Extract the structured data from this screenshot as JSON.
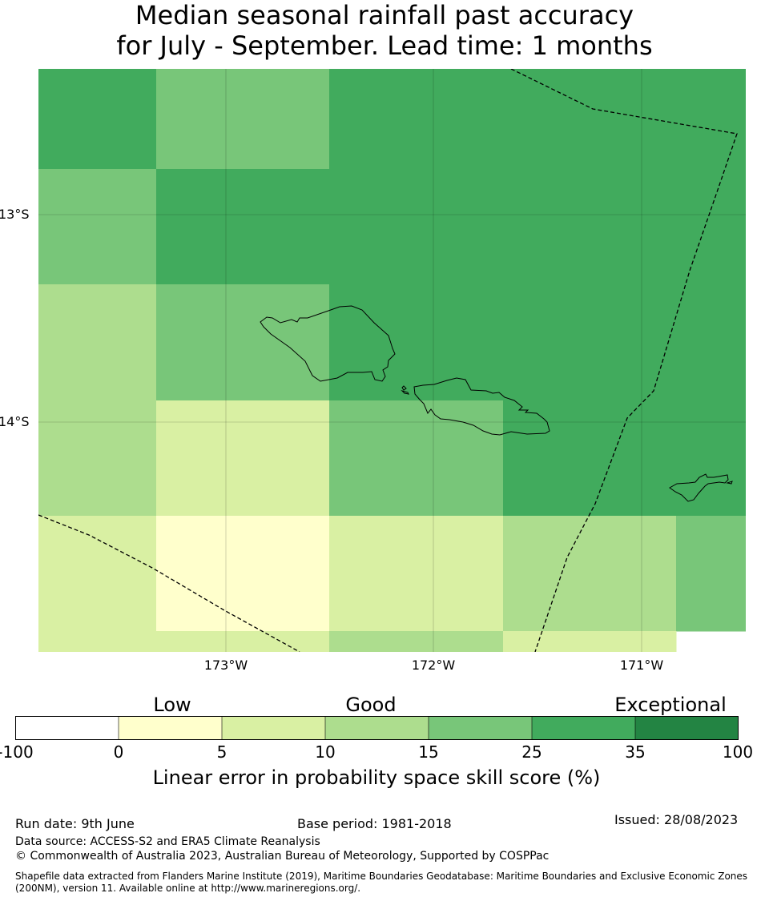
{
  "title": {
    "line1": "Median seasonal rainfall past accuracy",
    "line2": "for July - September. Lead time: 1 months"
  },
  "map": {
    "lat_labels": [
      "13°S",
      "14°S"
    ],
    "lon_labels": [
      "173°W",
      "172°W",
      "171°W"
    ],
    "grid_fill_scale": {
      "c1": "#ffffcc",
      "c2": "#d9f0a3",
      "c3": "#addd8e",
      "c4": "#78c679",
      "c5": "#41ab5d"
    },
    "grid_cells": [
      [
        "c5",
        "c4",
        "c4",
        "c5",
        "c5",
        "c5",
        "c5"
      ],
      [
        "c4",
        "c5",
        "c5",
        "c5",
        "c5",
        "c5",
        "c5"
      ],
      [
        "c3",
        "c4",
        "c4",
        "c5",
        "c5",
        "c5",
        "c5"
      ],
      [
        "c3",
        "c2",
        "c2",
        "c4",
        "c5",
        "c5",
        "c5"
      ],
      [
        "c2",
        "c1",
        "c1",
        "c2",
        "c3",
        "c3",
        "c4"
      ],
      [
        "c2",
        "c2",
        "c2",
        "c3",
        "c2",
        "c2",
        ""
      ]
    ]
  },
  "colorbar": {
    "categories": [
      "Low",
      "Good",
      "Exceptional"
    ],
    "ticks": [
      "-100",
      "0",
      "5",
      "10",
      "15",
      "25",
      "35",
      "100"
    ],
    "colors": [
      "#ffffff",
      "#ffffcc",
      "#d9f0a3",
      "#addd8e",
      "#78c679",
      "#41ab5d",
      "#238443"
    ],
    "label": "Linear error in probability space skill score (%)"
  },
  "footer": {
    "run_date": "Run date: 9th June",
    "base_period": "Base period: 1981-2018",
    "issued": "Issued: 28/08/2023",
    "data_source": "Data source: ACCESS-S2 and ERA5 Climate Reanalysis",
    "copyright": "© Commonwealth of Australia 2023, Australian Bureau of Meteorology, Supported by COSPPac",
    "shapefile": "Shapefile data extracted from Flanders Marine Institute (2019), Maritime Boundaries Geodatabase: Maritime Boundaries and Exclusive Economic Zones (200NM), version 11. Available online at http://www.marineregions.org/."
  }
}
